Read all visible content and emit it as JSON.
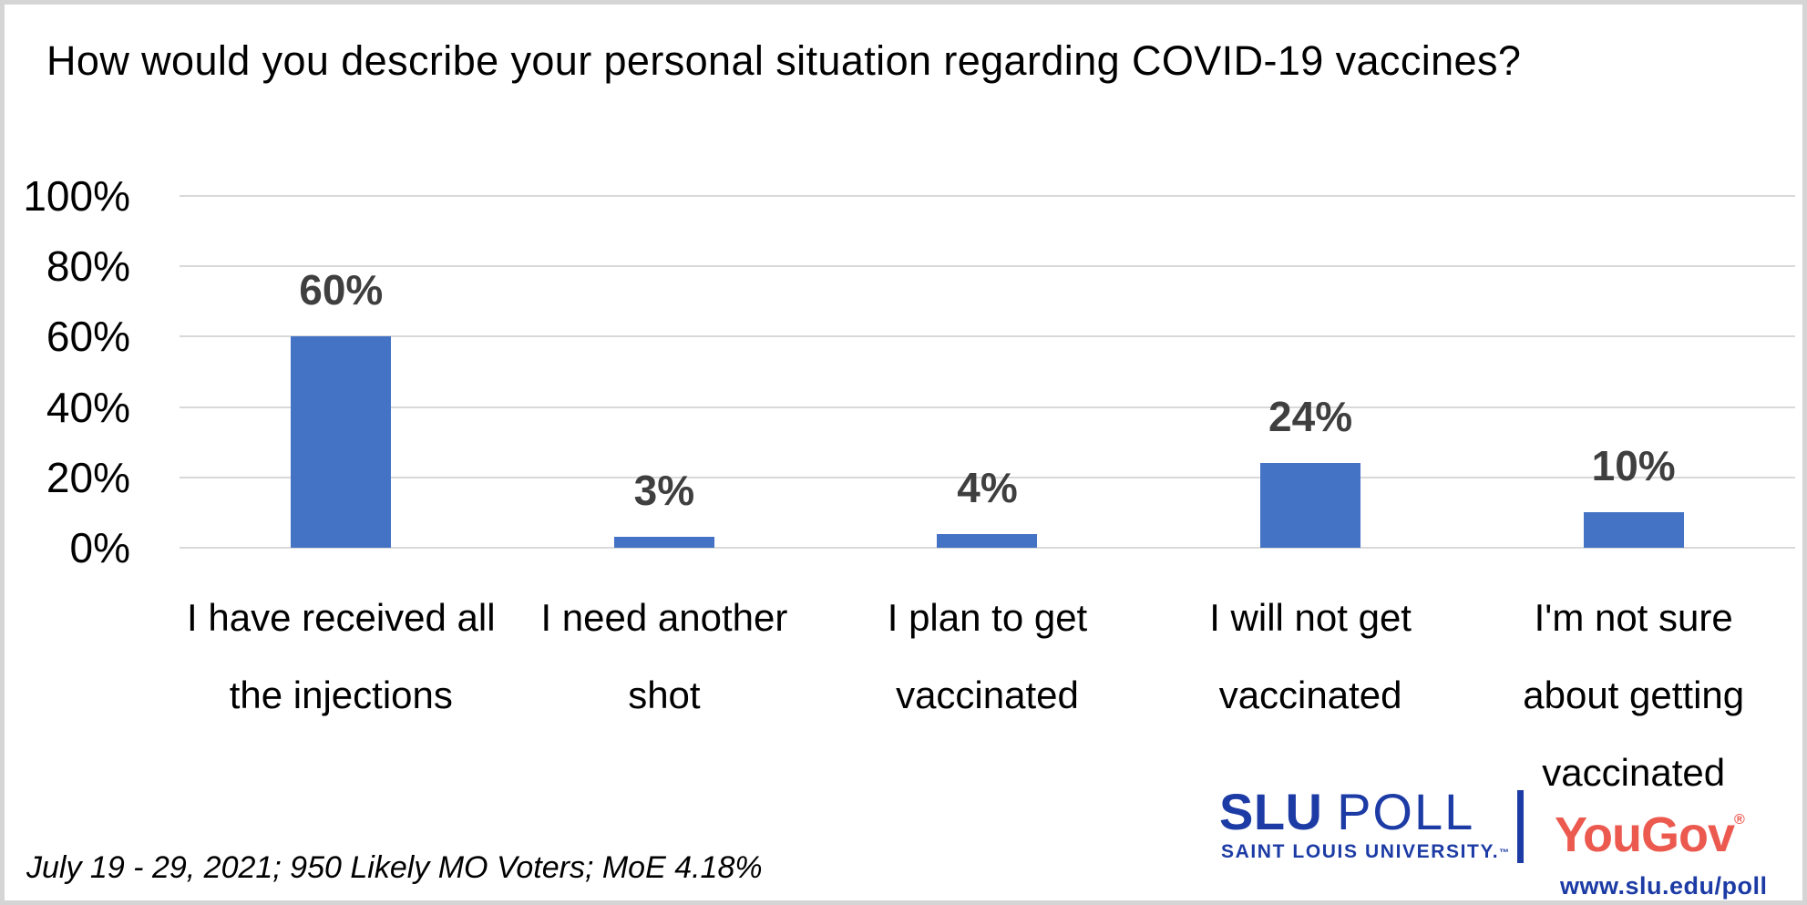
{
  "title": "How would you describe your personal situation regarding COVID-19 vaccines?",
  "colors": {
    "bar": "#4472C4",
    "gridline": "#D9D9D9",
    "data_label": "#3F3F3F",
    "text": "#000000",
    "slu_blue": "#1C3BA5",
    "yougov_red": "#EB594F",
    "border": "#D5D5D5"
  },
  "chart_data": {
    "type": "bar",
    "title": "How would you describe your personal situation regarding COVID-19 vaccines?",
    "categories": [
      "I have received all\nthe injections",
      "I need another\nshot",
      "I plan to get\nvaccinated",
      "I will not get\nvaccinated",
      "I'm not sure\nabout getting\nvaccinated"
    ],
    "values": [
      60,
      3,
      4,
      24,
      10
    ],
    "labels": [
      "60%",
      "3%",
      "4%",
      "24%",
      "10%"
    ],
    "y_ticks": [
      0,
      20,
      40,
      60,
      80,
      100
    ],
    "y_tick_labels": [
      "0%",
      "20%",
      "40%",
      "60%",
      "80%",
      "100%"
    ],
    "ylim": [
      0,
      100
    ],
    "grid": true,
    "legend": "none",
    "xlabel": "",
    "ylabel": ""
  },
  "footer": {
    "note": "July 19 - 29, 2021; 950 Likely MO Voters; MoE 4.18%",
    "slu": "SLU",
    "poll": "POLL",
    "slu_sub": "SAINT LOUIS UNIVERSITY.",
    "slu_tm": "™",
    "yougov": "YouGov",
    "yougov_reg": "®",
    "url": "www.slu.edu/poll"
  }
}
